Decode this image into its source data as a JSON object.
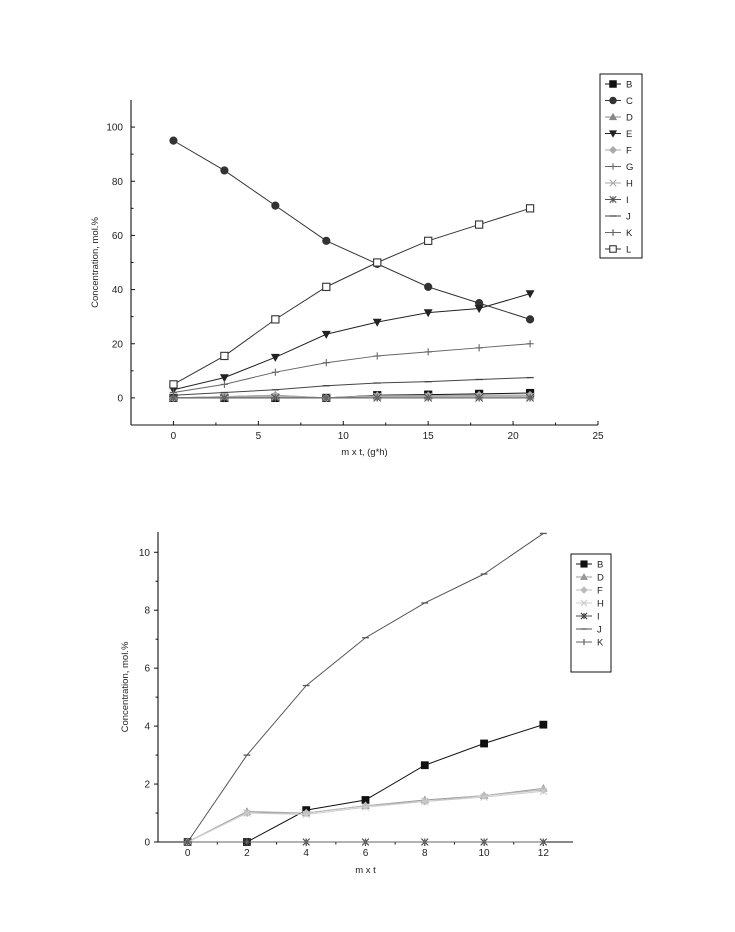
{
  "chart_data": [
    {
      "type": "line",
      "xlabel": "m x t, (g*h)",
      "ylabel": "Concentration, mol.%",
      "xlim": [
        -2.5,
        25
      ],
      "ylim": [
        -10,
        110
      ],
      "xticks": [
        0,
        5,
        10,
        15,
        20,
        25
      ],
      "yticks": [
        0,
        20,
        40,
        60,
        80,
        100
      ],
      "legend_position": "top-right",
      "x": [
        0,
        3,
        6,
        9,
        12,
        15,
        18,
        21
      ],
      "series": [
        {
          "name": "B",
          "marker": "square-filled",
          "color": "#111111",
          "values": [
            0,
            0,
            0,
            0,
            1,
            1.2,
            1.5,
            1.8
          ]
        },
        {
          "name": "C",
          "marker": "circle-filled",
          "color": "#333333",
          "values": [
            95,
            84,
            71,
            58,
            49.5,
            41,
            35,
            29
          ]
        },
        {
          "name": "D",
          "marker": "triangle-up",
          "color": "#888888",
          "values": [
            0,
            0.5,
            1,
            0,
            0.8,
            0.8,
            1,
            1
          ]
        },
        {
          "name": "E",
          "marker": "triangle-down",
          "color": "#222222",
          "values": [
            3,
            7.5,
            15,
            23.5,
            28,
            31.5,
            33,
            38.5
          ]
        },
        {
          "name": "F",
          "marker": "diamond",
          "color": "#aaaaaa",
          "values": [
            0,
            0.5,
            1,
            0,
            0.8,
            0.8,
            1,
            1
          ]
        },
        {
          "name": "G",
          "marker": "plus",
          "color": "#666666",
          "values": [
            2,
            5,
            9.5,
            13,
            15.5,
            17,
            18.5,
            20
          ]
        },
        {
          "name": "H",
          "marker": "x",
          "color": "#aaaaaa",
          "values": [
            0,
            0.3,
            0.5,
            0,
            0.5,
            0.5,
            0.5,
            0.5
          ]
        },
        {
          "name": "I",
          "marker": "asterisk",
          "color": "#555555",
          "values": [
            0,
            0,
            0,
            0,
            0,
            0,
            0,
            0
          ]
        },
        {
          "name": "J",
          "marker": "hline",
          "color": "#444444",
          "values": [
            1,
            2,
            3,
            4.5,
            5.5,
            6,
            6.8,
            7.5
          ]
        },
        {
          "name": "K",
          "marker": "vline",
          "color": "#666666",
          "values": [
            0,
            0,
            0,
            0,
            0,
            0,
            0,
            0
          ]
        },
        {
          "name": "L",
          "marker": "square-open",
          "color": "#333333",
          "values": [
            5,
            15.5,
            29,
            41,
            50,
            58,
            64,
            70
          ]
        }
      ]
    },
    {
      "type": "line",
      "xlabel": "m x t",
      "ylabel": "Concentration, mol.%",
      "xlim": [
        -1,
        13
      ],
      "ylim": [
        0,
        10.7
      ],
      "xticks": [
        0,
        2,
        4,
        6,
        8,
        10,
        12
      ],
      "yticks": [
        0,
        2,
        4,
        6,
        8,
        10
      ],
      "legend_position": "top-right",
      "x": [
        0,
        2,
        4,
        6,
        8,
        10,
        12
      ],
      "series": [
        {
          "name": "B",
          "marker": "square-filled",
          "color": "#111111",
          "values": [
            0,
            0,
            1.1,
            1.45,
            2.65,
            3.4,
            4.05
          ]
        },
        {
          "name": "D",
          "marker": "triangle-up",
          "color": "#999999",
          "values": [
            0,
            1.05,
            1.0,
            1.25,
            1.45,
            1.6,
            1.85
          ]
        },
        {
          "name": "F",
          "marker": "diamond",
          "color": "#bbbbbb",
          "values": [
            0,
            1.0,
            1.0,
            1.25,
            1.4,
            1.6,
            1.8
          ]
        },
        {
          "name": "H",
          "marker": "x",
          "color": "#cccccc",
          "values": [
            0,
            1.0,
            0.95,
            1.2,
            1.4,
            1.55,
            1.75
          ]
        },
        {
          "name": "I",
          "marker": "asterisk",
          "color": "#444444",
          "values": [
            0,
            0,
            0,
            0,
            0,
            0,
            0
          ]
        },
        {
          "name": "J",
          "marker": "hline",
          "color": "#555555",
          "values": [
            0,
            3.0,
            5.4,
            7.05,
            8.25,
            9.25,
            10.65
          ]
        },
        {
          "name": "K",
          "marker": "vline",
          "color": "#666666",
          "values": [
            0,
            0,
            0,
            0,
            0,
            0,
            0
          ]
        }
      ]
    }
  ]
}
